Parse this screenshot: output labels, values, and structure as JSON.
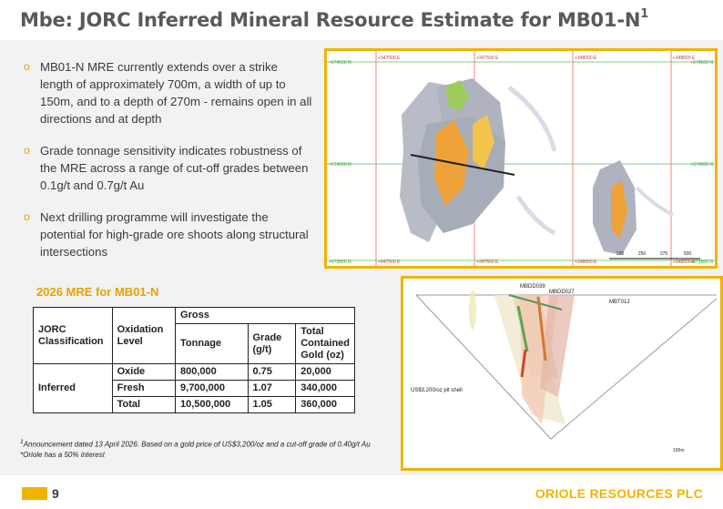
{
  "title": {
    "main": "Mbe: JORC Inferred Mineral Resource Estimate for MB01-N",
    "sup": "1"
  },
  "bullets": [
    "MB01-N MRE currently extends over a strike length of approximately 700m, a width of up to 150m, and to a depth of 270m - remains open in all directions and at depth",
    "Grade tonnage sensitivity indicates robustness of the MRE across a range of cut-off grades between 0.1g/t and 0.7g/t Au",
    "Next drilling programme will investigate the potential for high-grade ore shoots along structural intersections"
  ],
  "bullet_marker": "o",
  "table_title": "2026 MRE for MB01-N",
  "table": {
    "h_class": "JORC Classification",
    "h_ox": "Oxidation Level",
    "h_gross": "Gross",
    "h_tonnage": "Tonnage",
    "h_grade": "Grade (g/t)",
    "h_gold": "Total Contained Gold (oz)",
    "class_inferred": "Inferred",
    "rows": [
      {
        "ox": "Oxide",
        "ton": "800,000",
        "grade": "0.75",
        "gold": "20,000"
      },
      {
        "ox": "Fresh",
        "ton": "9,700,000",
        "grade": "1.07",
        "gold": "340,000"
      },
      {
        "ox": "Total",
        "ton": "10,500,000",
        "grade": "1.05",
        "gold": "360,000"
      }
    ]
  },
  "footnote": {
    "sup": "1",
    "line1": "Announcement dated 13 April 2026. Based on a gold price of US$3,200/oz and a cut-off grade of 0.40g/t Au",
    "line2": "*Oriole has a 50% interest"
  },
  "map_plan": {
    "e_labels": [
      "+347000 E",
      "+347500 E",
      "+348000 E",
      "+348500 E"
    ],
    "n_labels": [
      "+674500 N",
      "+674000 N",
      "+673500 N"
    ],
    "scale": [
      "125",
      "250",
      "375",
      "500"
    ]
  },
  "map_section": {
    "holes": [
      "MBDD039",
      "MBDD027"
    ],
    "hole_label": "MBT012",
    "shell_label": "US$3,200/oz pit shell",
    "scale_label": "100m"
  },
  "footer": {
    "page": "9",
    "company": "ORIOLE RESOURCES PLC"
  },
  "colors": {
    "accent": "#f0b400",
    "text": "#3a3a3a",
    "title": "#595959"
  }
}
